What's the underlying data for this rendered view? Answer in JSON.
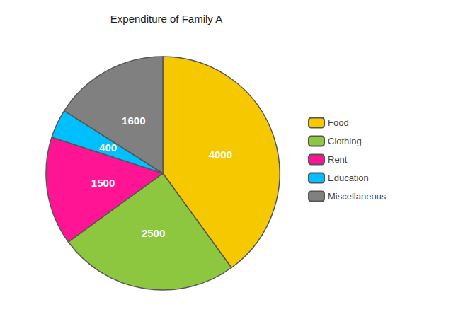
{
  "chart_data": {
    "type": "pie",
    "title": "Expenditure of Family A",
    "categories": [
      "Food",
      "Clothing",
      "Rent",
      "Education",
      "Miscellaneous"
    ],
    "values": [
      4000,
      2500,
      1500,
      400,
      1600
    ],
    "colors": [
      "#F5C800",
      "#8DC63F",
      "#FF1493",
      "#00BFFF",
      "#808080"
    ],
    "data_labels": true,
    "legend": "right"
  }
}
